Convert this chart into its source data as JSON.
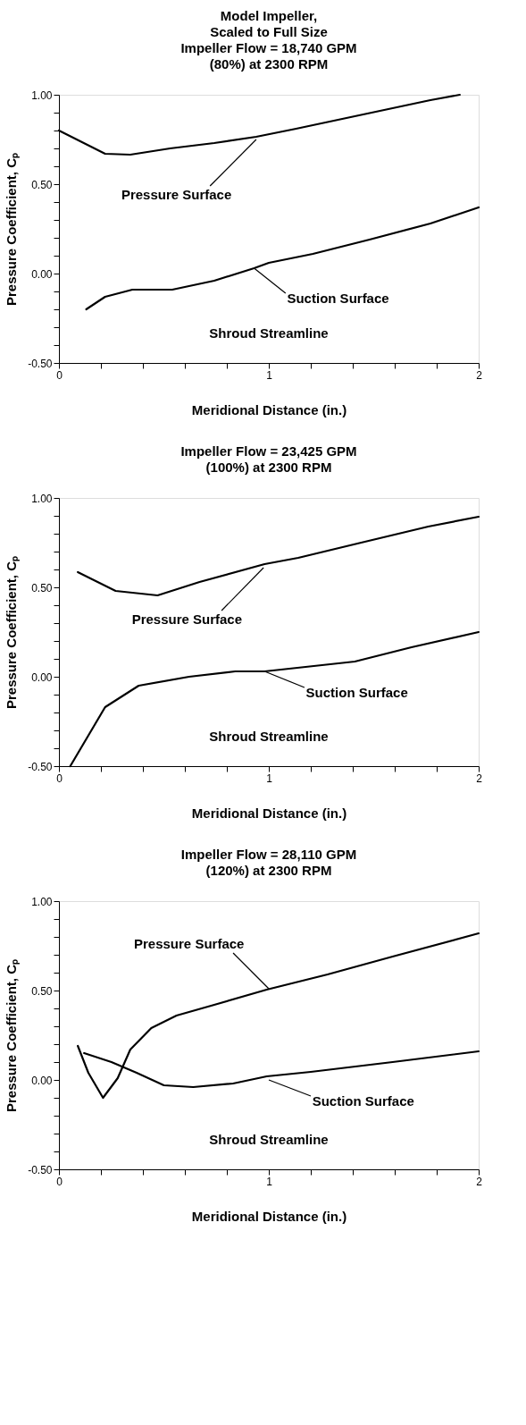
{
  "chart_data": [
    {
      "type": "line",
      "title": "Model Impeller,\nScaled to Full Size\nImpeller Flow = 18,740 GPM\n(80%) at 2300 RPM",
      "xlabel": "Meridional Distance (in.)",
      "ylabel": "Pressure Coefficient, Cₚ",
      "xlim": [
        0,
        2
      ],
      "ylim": [
        -0.5,
        1.0
      ],
      "xticks": [
        0,
        {
          "value": 0.2,
          "label": null
        },
        {
          "value": 0.4,
          "label": null
        },
        {
          "value": 0.6,
          "label": null
        },
        {
          "value": 0.8,
          "label": null
        },
        1,
        {
          "value": 1.2,
          "label": null
        },
        {
          "value": 1.4,
          "label": null
        },
        {
          "value": 1.6,
          "label": null
        },
        {
          "value": 1.8,
          "label": null
        },
        2
      ],
      "yticks": [
        {
          "value": -0.5,
          "label": "-0.50"
        },
        {
          "value": -0.4,
          "label": null
        },
        {
          "value": -0.3,
          "label": null
        },
        {
          "value": -0.2,
          "label": null
        },
        {
          "value": -0.1,
          "label": null
        },
        {
          "value": 0,
          "label": "0.00"
        },
        {
          "value": 0.1,
          "label": null
        },
        {
          "value": 0.2,
          "label": null
        },
        {
          "value": 0.3,
          "label": null
        },
        {
          "value": 0.4,
          "label": null
        },
        {
          "value": 0.5,
          "label": "0.50"
        },
        {
          "value": 0.6,
          "label": null
        },
        {
          "value": 0.7,
          "label": null
        },
        {
          "value": 0.8,
          "label": null
        },
        {
          "value": 0.9,
          "label": null
        },
        {
          "value": 1.0,
          "label": "1.00"
        }
      ],
      "grid": false,
      "series": [
        {
          "color": "#000000",
          "x": [
            0,
            0.22,
            0.34,
            0.53,
            0.74,
            0.94,
            1.13,
            1.45,
            1.77,
            1.91
          ],
          "values": [
            0.8,
            0.67,
            0.665,
            0.7,
            0.73,
            0.765,
            0.81,
            0.89,
            0.97,
            1.0
          ]
        },
        {
          "color": "#000000",
          "x": [
            0.13,
            0.22,
            0.35,
            0.54,
            0.74,
            0.93,
            1.0,
            1.21,
            1.48,
            1.77,
            2.0
          ],
          "values": [
            -0.2,
            -0.13,
            -0.09,
            -0.09,
            -0.04,
            0.03,
            0.06,
            0.11,
            0.19,
            0.28,
            0.37
          ]
        }
      ],
      "annotations": [
        {
          "text": "Pressure Surface",
          "x": 0.94,
          "y": 0.75
        },
        {
          "text": "Suction Surface",
          "x": 0.93,
          "y": 0.03
        },
        "Shroud Streamline"
      ]
    },
    {
      "type": "line",
      "title": "Impeller Flow = 23,425 GPM\n(100%) at 2300 RPM",
      "xlabel": "Meridional Distance (in.)",
      "ylabel": "Pressure Coefficient, Cₚ",
      "xlim": [
        0,
        2
      ],
      "ylim": [
        -0.5,
        1.0
      ],
      "xticks": [
        0,
        {
          "value": 0.2,
          "label": null
        },
        {
          "value": 0.4,
          "label": null
        },
        {
          "value": 0.6,
          "label": null
        },
        {
          "value": 0.8,
          "label": null
        },
        1,
        {
          "value": 1.2,
          "label": null
        },
        {
          "value": 1.4,
          "label": null
        },
        {
          "value": 1.6,
          "label": null
        },
        {
          "value": 1.8,
          "label": null
        },
        2
      ],
      "yticks": [
        {
          "value": -0.5,
          "label": "-0.50"
        },
        {
          "value": -0.4,
          "label": null
        },
        {
          "value": -0.3,
          "label": null
        },
        {
          "value": -0.2,
          "label": null
        },
        {
          "value": -0.1,
          "label": null
        },
        {
          "value": 0,
          "label": "0.00"
        },
        {
          "value": 0.1,
          "label": null
        },
        {
          "value": 0.2,
          "label": null
        },
        {
          "value": 0.3,
          "label": null
        },
        {
          "value": 0.4,
          "label": null
        },
        {
          "value": 0.5,
          "label": "0.50"
        },
        {
          "value": 0.6,
          "label": null
        },
        {
          "value": 0.7,
          "label": null
        },
        {
          "value": 0.8,
          "label": null
        },
        {
          "value": 0.9,
          "label": null
        },
        {
          "value": 1.0,
          "label": "1.00"
        }
      ],
      "grid": false,
      "series": [
        {
          "color": "#000000",
          "x": [
            0.09,
            0.27,
            0.47,
            0.67,
            0.98,
            1.14,
            1.44,
            1.76,
            2.0
          ],
          "values": [
            0.585,
            0.48,
            0.455,
            0.53,
            0.63,
            0.665,
            0.75,
            0.84,
            0.895
          ]
        },
        {
          "color": "#000000",
          "x": [
            0.054,
            0.22,
            0.38,
            0.62,
            0.84,
            0.98,
            1.41,
            1.68,
            2.0
          ],
          "values": [
            -0.5,
            -0.17,
            -0.05,
            0.0,
            0.03,
            0.03,
            0.085,
            0.165,
            0.25
          ]
        }
      ],
      "annotations": [
        {
          "text": "Pressure Surface",
          "x": 0.975,
          "y": 0.61
        },
        {
          "text": "Suction Surface",
          "x": 0.98,
          "y": 0.03
        },
        "Shroud Streamline"
      ]
    },
    {
      "type": "line",
      "title": "Impeller Flow = 28,110 GPM\n(120%) at 2300 RPM",
      "xlabel": "Meridional Distance (in.)",
      "ylabel": "Pressure Coefficient, Cₚ",
      "xlim": [
        0,
        2
      ],
      "ylim": [
        -0.5,
        1.0
      ],
      "xticks": [
        0,
        {
          "value": 0.2,
          "label": null
        },
        {
          "value": 0.4,
          "label": null
        },
        {
          "value": 0.6,
          "label": null
        },
        {
          "value": 0.8,
          "label": null
        },
        1,
        {
          "value": 1.2,
          "label": null
        },
        {
          "value": 1.4,
          "label": null
        },
        {
          "value": 1.6,
          "label": null
        },
        {
          "value": 1.8,
          "label": null
        },
        2
      ],
      "yticks": [
        {
          "value": -0.5,
          "label": "-0.50"
        },
        {
          "value": -0.4,
          "label": null
        },
        {
          "value": -0.3,
          "label": null
        },
        {
          "value": -0.2,
          "label": null
        },
        {
          "value": -0.1,
          "label": null
        },
        {
          "value": 0,
          "label": "0.00"
        },
        {
          "value": 0.1,
          "label": null
        },
        {
          "value": 0.2,
          "label": null
        },
        {
          "value": 0.3,
          "label": null
        },
        {
          "value": 0.4,
          "label": null
        },
        {
          "value": 0.5,
          "label": "0.50"
        },
        {
          "value": 0.6,
          "label": null
        },
        {
          "value": 0.7,
          "label": null
        },
        {
          "value": 0.8,
          "label": null
        },
        {
          "value": 0.9,
          "label": null
        },
        {
          "value": 1.0,
          "label": "1.00"
        }
      ],
      "grid": false,
      "series": [
        {
          "color": "#000000",
          "x": [
            0.09,
            0.14,
            0.21,
            0.28,
            0.34,
            0.44,
            0.56,
            0.74,
            0.99,
            1.28,
            1.59,
            2.0
          ],
          "values": [
            0.19,
            0.04,
            -0.1,
            0.01,
            0.17,
            0.29,
            0.36,
            0.42,
            0.505,
            0.59,
            0.69,
            0.82
          ]
        },
        {
          "color": "#000000",
          "x": [
            0.12,
            0.25,
            0.37,
            0.5,
            0.64,
            0.83,
            0.99,
            1.2,
            1.59,
            2.0
          ],
          "values": [
            0.15,
            0.1,
            0.04,
            -0.03,
            -0.04,
            -0.02,
            0.02,
            0.045,
            0.1,
            0.16
          ]
        }
      ],
      "annotations": [
        {
          "text": "Pressure Surface",
          "x": 1.0,
          "y": 0.51
        },
        {
          "text": "Suction Surface",
          "x": 1.0,
          "y": 0.0
        },
        "Shroud Streamline"
      ]
    }
  ]
}
